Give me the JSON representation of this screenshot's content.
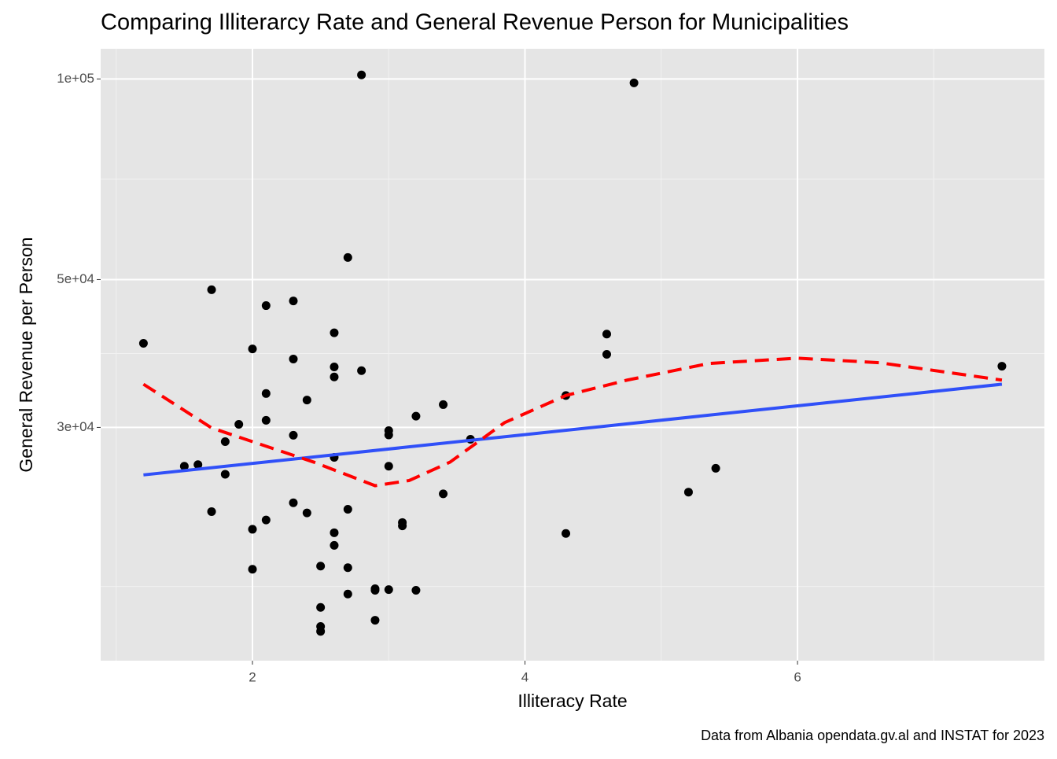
{
  "chart_data": {
    "type": "scatter",
    "title": "Comparing Illiterarcy Rate and General Revenue Person for Municipalities",
    "x_label": "Illiteracy Rate",
    "y_label": "General Revenue per Person",
    "caption": "Data from Albania opendata.gv.al and INSTAT for 2023",
    "log_y": true,
    "grid": true,
    "xlim": [
      0.886,
      7.812
    ],
    "ylim": [
      13400,
      111000
    ],
    "xticks": [
      2,
      4,
      6
    ],
    "x_minor_grid": [
      1,
      3,
      5,
      7
    ],
    "yticks": [
      {
        "value": 30000,
        "label": "3e+04"
      },
      {
        "value": 50000,
        "label": "5e+04"
      },
      {
        "value": 100000,
        "label": "1e+05"
      }
    ],
    "y_minor_grid": [
      17320,
      38730,
      70710
    ],
    "series": [
      {
        "color": "#000000",
        "x": [
          1.2,
          1.7,
          2.1,
          2.3,
          2.7,
          2.8,
          4.8,
          2.0,
          2.3,
          2.6,
          2.6,
          2.6,
          2.8,
          2.1,
          2.4,
          1.9,
          2.1,
          2.3,
          1.8,
          3.0,
          3.0,
          3.2,
          3.4,
          3.6,
          1.5,
          1.6,
          2.6,
          1.8,
          3.0,
          3.4,
          4.3,
          4.6,
          4.6,
          7.5,
          5.2,
          5.4,
          1.7,
          2.3,
          2.4,
          2.7,
          2.1,
          2.0,
          3.1,
          3.1,
          2.6,
          2.6,
          4.3,
          2.0,
          2.5,
          2.7,
          2.9,
          2.9,
          3.0,
          3.2,
          2.7,
          2.5,
          2.5,
          2.5,
          2.9
        ],
        "values": [
          40120,
          48270,
          45700,
          46450,
          53960,
          101400,
          98650,
          39350,
          38000,
          41600,
          36980,
          35720,
          36500,
          33730,
          32980,
          30320,
          30750,
          29200,
          28560,
          29670,
          29230,
          31190,
          32460,
          28800,
          26240,
          26380,
          27050,
          25520,
          26240,
          23850,
          33500,
          41420,
          38620,
          37070,
          23990,
          26050,
          22430,
          23120,
          22330,
          22610,
          21790,
          21100,
          21600,
          21350,
          20850,
          19960,
          20800,
          18380,
          18580,
          18480,
          17180,
          17090,
          17130,
          17090,
          16870,
          16110,
          15080,
          14830,
          15410
        ]
      }
    ],
    "lines": [
      {
        "color": "#3050f8",
        "dash": false,
        "x": [
          1.2,
          7.5
        ],
        "values": [
          25460,
          34830
        ]
      },
      {
        "color": "#ff0000",
        "dash": true,
        "x": [
          1.2,
          1.7,
          2.0,
          2.45,
          2.9,
          3.15,
          3.45,
          3.85,
          4.3,
          4.75,
          5.35,
          6.0,
          6.6,
          7.5
        ],
        "values": [
          34830,
          29950,
          28560,
          26610,
          24530,
          24970,
          26610,
          30500,
          33500,
          35330,
          37420,
          38110,
          37520,
          35330
        ]
      }
    ]
  }
}
